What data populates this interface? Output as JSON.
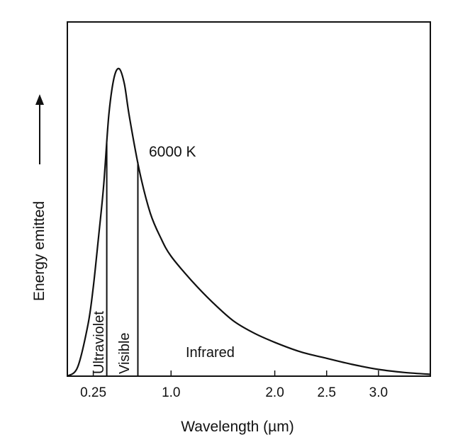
{
  "chart_data": {
    "type": "line",
    "title": "",
    "xlabel": "Wavelength (µm)",
    "ylabel": "Energy emitted",
    "xticks": [
      "0.25",
      "1.0",
      "2.0",
      "2.5",
      "3.0"
    ],
    "xlim": [
      0.0,
      3.5
    ],
    "series": [
      {
        "name": "6000 K",
        "x": [
          0.0,
          0.1,
          0.2,
          0.25,
          0.3,
          0.35,
          0.4,
          0.45,
          0.5,
          0.55,
          0.6,
          0.7,
          0.8,
          0.9,
          1.0,
          1.2,
          1.4,
          1.6,
          1.8,
          2.0,
          2.25,
          2.5,
          2.75,
          3.0,
          3.25,
          3.5
        ],
        "y": [
          0.0,
          0.03,
          0.17,
          0.29,
          0.45,
          0.62,
          0.85,
          0.97,
          1.0,
          0.95,
          0.84,
          0.66,
          0.53,
          0.45,
          0.39,
          0.31,
          0.24,
          0.18,
          0.14,
          0.11,
          0.079,
          0.058,
          0.038,
          0.022,
          0.012,
          0.006
        ]
      }
    ],
    "regions": [
      {
        "label": "Ultraviolet",
        "x_start": 0.0,
        "x_end": 0.38
      },
      {
        "label": "Visible",
        "x_start": 0.38,
        "x_end": 0.68
      },
      {
        "label": "Infrared",
        "x_start": 0.68,
        "x_end": 3.5
      }
    ],
    "curve_label": "6000 K",
    "y_arrow": "↑",
    "grid": false,
    "legend": "none",
    "colors": {
      "line": "#111111",
      "frame": "#111111"
    }
  }
}
